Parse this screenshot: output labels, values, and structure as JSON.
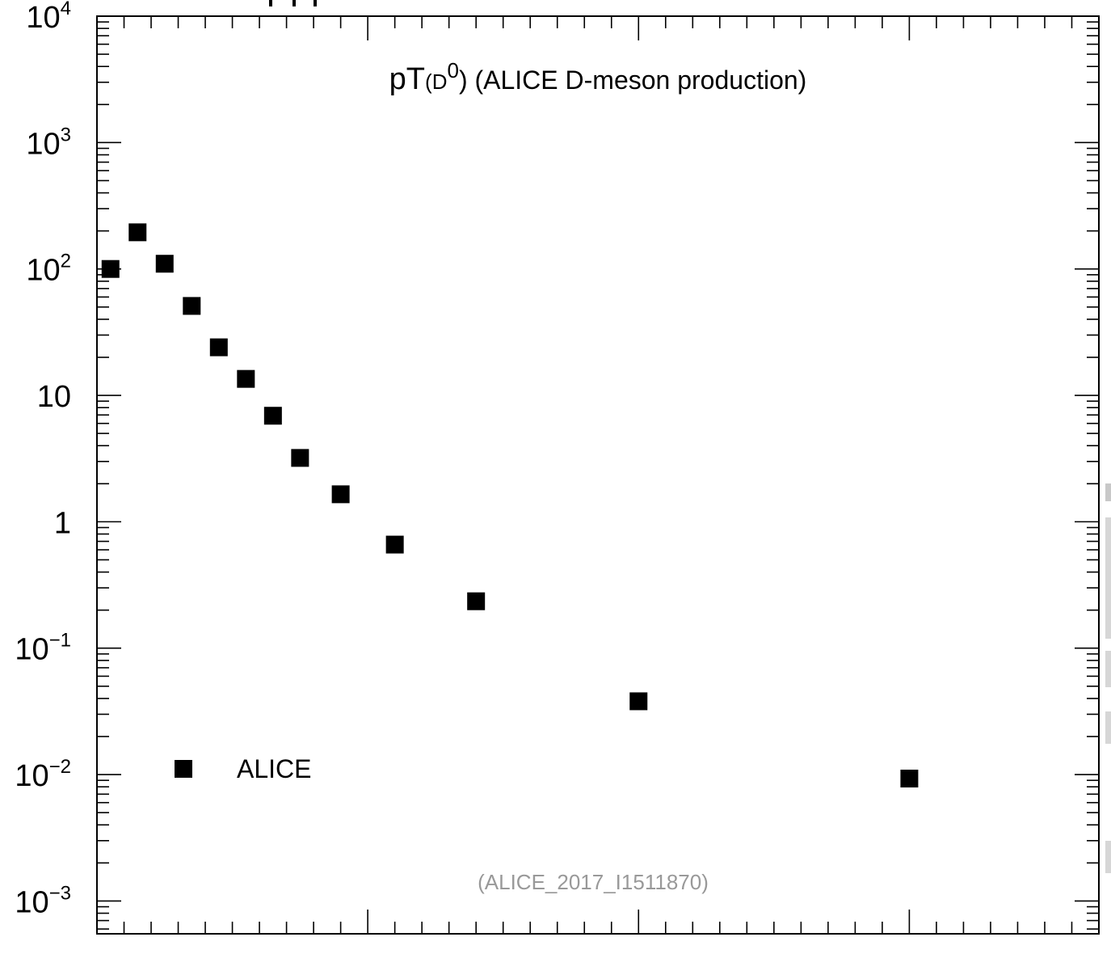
{
  "chart_data": {
    "type": "scatter",
    "title": {
      "prefix": "pT",
      "paren_open": "(D",
      "superscript": "0",
      "paren_close": ")",
      "rest": " (ALICE D-meson production)"
    },
    "xlabel": "",
    "ylabel": "",
    "yscale": "log",
    "ylim": [
      0.00055,
      10000
    ],
    "xlim": [
      0,
      37
    ],
    "y_tick_labels": [
      {
        "value": 10000,
        "base": "10",
        "exp": "4"
      },
      {
        "value": 1000,
        "base": "10",
        "exp": "3"
      },
      {
        "value": 100,
        "base": "10",
        "exp": "2"
      },
      {
        "value": 10,
        "base": "10",
        "exp": ""
      },
      {
        "value": 1,
        "base": "1",
        "exp": ""
      },
      {
        "value": 0.1,
        "base": "10",
        "exp": "−1"
      },
      {
        "value": 0.01,
        "base": "10",
        "exp": "−2"
      },
      {
        "value": 0.001,
        "base": "10",
        "exp": "−3"
      }
    ],
    "series": [
      {
        "name": "ALICE",
        "marker": "square",
        "color": "#000000",
        "x": [
          0.5,
          1.5,
          2.5,
          3.5,
          4.5,
          5.5,
          6.5,
          7.5,
          9.0,
          11.0,
          14.0,
          20.0,
          30.0
        ],
        "y": [
          100,
          195,
          110,
          51,
          24,
          13.5,
          6.9,
          3.2,
          1.65,
          0.66,
          0.235,
          0.038,
          0.0093
        ]
      }
    ],
    "legend_position": "bottom-left",
    "annotation": "(ALICE_2017_I1511870)"
  }
}
